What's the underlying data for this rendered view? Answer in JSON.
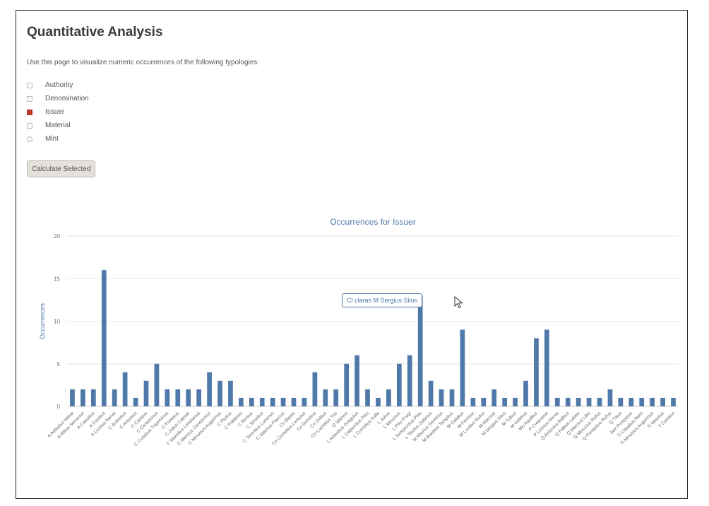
{
  "page": {
    "title": "Quantitative Analysis",
    "intro": "Use this page to visualize numeric occurrences of the following typologies:"
  },
  "typologies": [
    {
      "label": "Authority",
      "checked": false
    },
    {
      "label": "Denomination",
      "checked": false
    },
    {
      "label": "Issuer",
      "checked": true
    },
    {
      "label": "Material",
      "checked": false
    },
    {
      "label": "Mint",
      "checked": false
    }
  ],
  "calculate_button": {
    "label": "Calculate Selected"
  },
  "tooltip": {
    "text": "Cl claras M Sergius Silus"
  },
  "colors": {
    "bar": "#4f79a8",
    "checked": "#c0392b",
    "grid": "#e6e6e6",
    "title": "#4f79a8"
  },
  "chart_data": {
    "type": "bar",
    "title": "Occurrences for Issuer",
    "ylabel": "Occurrences",
    "xlabel": "",
    "ylim": [
      0,
      20
    ],
    "yticks": [
      0,
      5,
      10,
      15,
      20
    ],
    "grid": true,
    "categories": [
      "A Aebutius Helva",
      "A Atilius Serranus",
      "A Caecilius",
      "A Cassius",
      "A Licinius Nerva",
      "C Antestius",
      "C Antonius",
      "C Cassius",
      "C Censorinus",
      "C Curiatius Trigeminus",
      "C Fonteius",
      "C Julius Caesar",
      "C Mamilius Limetanus",
      "C Marcius Censorinus",
      "C Minucius Augurinus",
      "C Plutius",
      "C Poblicius",
      "C Renius",
      "C Servilius",
      "C Terentius Lucanus",
      "C Valerius Flaccus",
      "Cn Blasio",
      "Cn Cornelius Lentulus",
      "Cn Domitius",
      "Cn Gellius",
      "Cn Lucretius Trio",
      "D Silanus",
      "L Antestius Gragulus",
      "L Calpurnius Piso",
      "L Cornelius Sulla",
      "L Julius",
      "L Minucius",
      "L Piso Frugi",
      "L Sempronius Pitio",
      "L Titurius Sabinus",
      "M Aburius Geminus",
      "M Baebius Tampilus",
      "M Calidius",
      "M Fannius",
      "M Lucilius Rufus",
      "M Marcius",
      "M Sergius Silus",
      "M Tullius",
      "M Volteius",
      "Mn Aquillius",
      "P Crepusius",
      "P Licinius Nerva",
      "Q Antonius Balbus",
      "Q Fabius Labeo",
      "Q Marcius Libo",
      "Q Minucius Rufus",
      "Q Pompeius Rufus",
      "Q Titius",
      "Sex Pompeius",
      "Ti Claudius Nero",
      "Ti Minucius Augurinus",
      "Ti Veturius",
      "T Carisius"
    ],
    "values": [
      2,
      2,
      2,
      16,
      2,
      4,
      1,
      3,
      5,
      2,
      2,
      2,
      2,
      4,
      3,
      3,
      1,
      1,
      1,
      1,
      1,
      1,
      1,
      4,
      2,
      2,
      5,
      6,
      2,
      1,
      2,
      5,
      6,
      13,
      3,
      2,
      2,
      9,
      1,
      1,
      2,
      1,
      1,
      3,
      8,
      9,
      1,
      1,
      1,
      1,
      1,
      2,
      1,
      1,
      1,
      1,
      1,
      1
    ]
  }
}
